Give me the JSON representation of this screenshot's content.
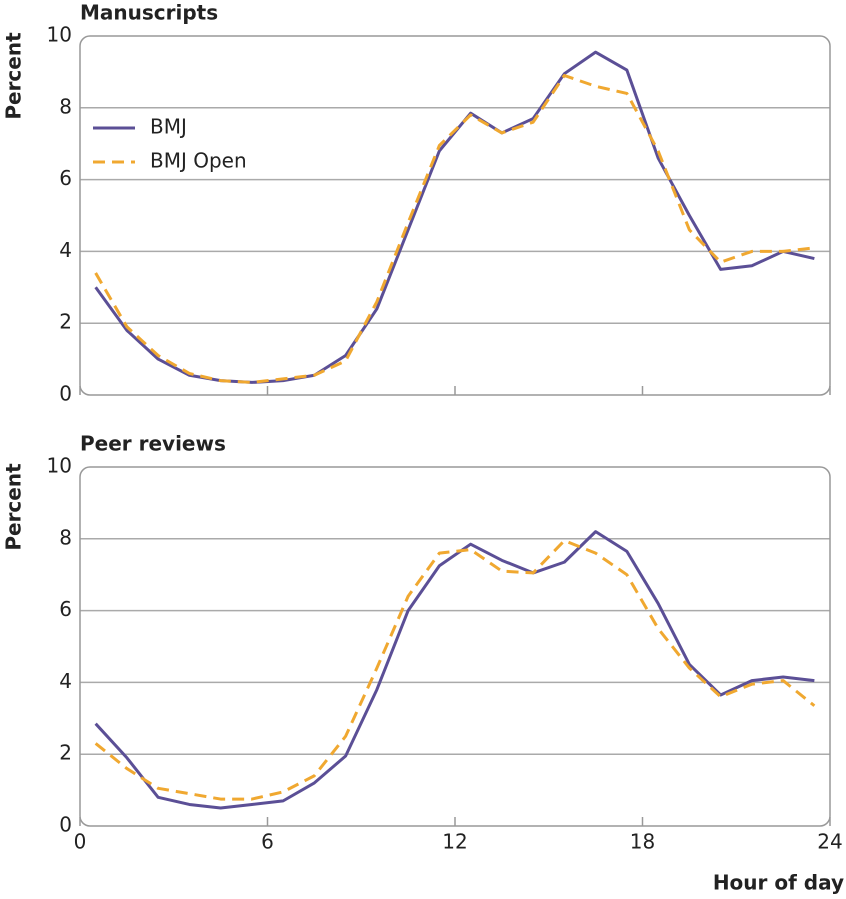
{
  "chart_data": [
    {
      "type": "line",
      "title": "Manuscripts",
      "ylabel": "Percent",
      "x": [
        0.5,
        1.5,
        2.5,
        3.5,
        4.5,
        5.5,
        6.5,
        7.5,
        8.5,
        9.5,
        10.5,
        11.5,
        12.5,
        13.5,
        14.5,
        15.5,
        16.5,
        17.5,
        18.5,
        19.5,
        20.5,
        21.5,
        22.5,
        23.5
      ],
      "xlim": [
        0,
        24
      ],
      "xticks": [
        0,
        6,
        12,
        18,
        24
      ],
      "xtick_labels": false,
      "ylim": [
        0,
        10
      ],
      "yticks": [
        0,
        2,
        4,
        6,
        8,
        10
      ],
      "grid": true,
      "legend": "upper left",
      "series": [
        {
          "name": "BMJ",
          "color": "#5b4f96",
          "style": "solid",
          "values": [
            3.0,
            1.8,
            1.0,
            0.55,
            0.4,
            0.35,
            0.4,
            0.55,
            1.1,
            2.4,
            4.6,
            6.8,
            7.85,
            7.3,
            7.7,
            8.95,
            9.55,
            9.05,
            6.6,
            5.0,
            3.5,
            3.6,
            4.0,
            3.8
          ]
        },
        {
          "name": "BMJ Open",
          "color": "#f0a830",
          "style": "dashed",
          "values": [
            3.4,
            1.9,
            1.1,
            0.6,
            0.4,
            0.35,
            0.45,
            0.55,
            0.95,
            2.6,
            4.8,
            6.95,
            7.8,
            7.3,
            7.6,
            8.9,
            8.6,
            8.4,
            6.8,
            4.6,
            3.7,
            4.0,
            4.0,
            4.1
          ]
        }
      ]
    },
    {
      "type": "line",
      "title": "Peer reviews",
      "ylabel": "Percent",
      "xlabel": "Hour of day",
      "x": [
        0.5,
        1.5,
        2.5,
        3.5,
        4.5,
        5.5,
        6.5,
        7.5,
        8.5,
        9.5,
        10.5,
        11.5,
        12.5,
        13.5,
        14.5,
        15.5,
        16.5,
        17.5,
        18.5,
        19.5,
        20.5,
        21.5,
        22.5,
        23.5
      ],
      "xlim": [
        0,
        24
      ],
      "xticks": [
        0,
        6,
        12,
        18,
        24
      ],
      "xtick_labels": true,
      "ylim": [
        0,
        10
      ],
      "yticks": [
        0,
        2,
        4,
        6,
        8,
        10
      ],
      "grid": true,
      "series": [
        {
          "color": "#5b4f96",
          "style": "solid",
          "values": [
            2.85,
            1.9,
            0.8,
            0.6,
            0.5,
            0.6,
            0.7,
            1.2,
            1.95,
            3.8,
            6.0,
            7.25,
            7.85,
            7.4,
            7.05,
            7.35,
            8.2,
            7.65,
            6.2,
            4.5,
            3.65,
            4.05,
            4.15,
            4.05
          ]
        },
        {
          "color": "#f0a830",
          "style": "dashed",
          "values": [
            2.3,
            1.6,
            1.05,
            0.9,
            0.75,
            0.75,
            0.95,
            1.4,
            2.5,
            4.4,
            6.4,
            7.6,
            7.7,
            7.1,
            7.05,
            7.95,
            7.6,
            7.0,
            5.5,
            4.4,
            3.6,
            3.95,
            4.05,
            3.35
          ]
        }
      ]
    }
  ]
}
